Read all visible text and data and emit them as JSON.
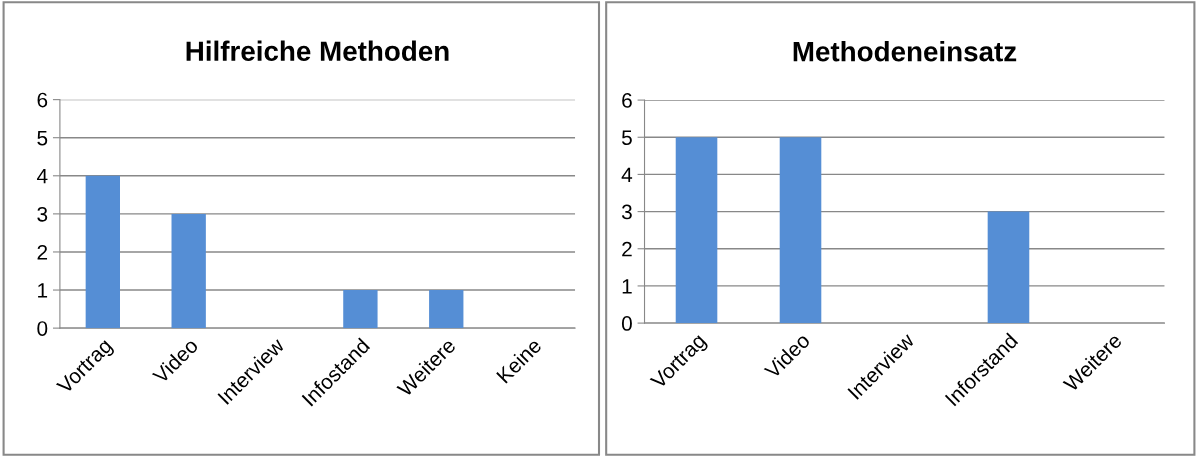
{
  "chart_data": [
    {
      "type": "bar",
      "title": "Hilfreiche Methoden",
      "categories": [
        "Vortrag",
        "Video",
        "Interview",
        "Infostand",
        "Weitere",
        "Keine"
      ],
      "values": [
        4,
        3,
        0,
        1,
        1,
        0
      ],
      "color": "#558ed5",
      "ylim": [
        0,
        6
      ],
      "yticks": [
        0,
        1,
        2,
        3,
        4,
        5,
        6
      ],
      "grid": "y",
      "legend": false
    },
    {
      "type": "bar",
      "title": "Methodeneinsatz",
      "categories": [
        "Vortrag",
        "Video",
        "Interview",
        "Inforstand",
        "Weitere"
      ],
      "values": [
        5,
        5,
        0,
        3,
        0
      ],
      "color": "#558ed5",
      "ylim": [
        0,
        6
      ],
      "yticks": [
        0,
        1,
        2,
        3,
        4,
        5,
        6
      ],
      "grid": "y",
      "legend": false
    }
  ]
}
